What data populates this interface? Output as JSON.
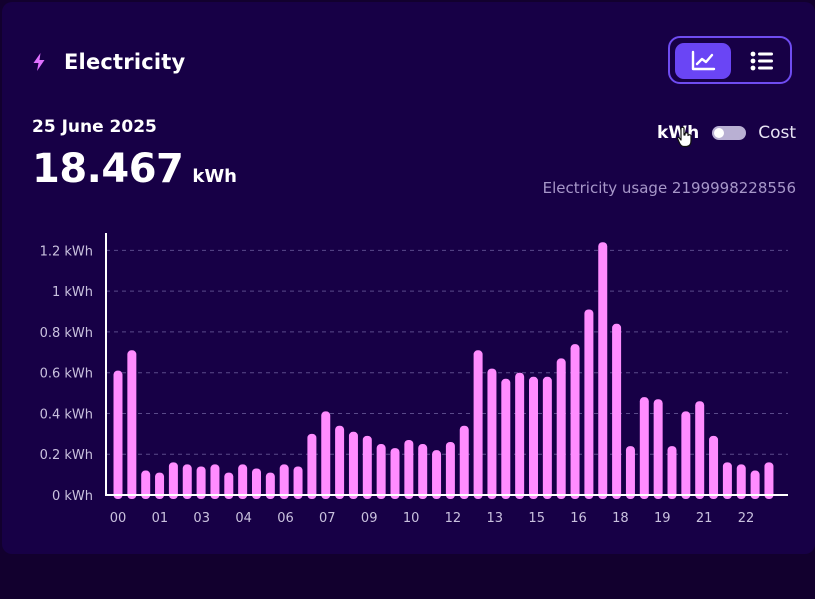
{
  "header": {
    "title": "Electricity",
    "icon": "lightning-bolt-icon",
    "icon_color": "#e070ff"
  },
  "view_toggle": {
    "chart_icon": "line-chart-icon",
    "list_icon": "list-icon",
    "selected": "chart",
    "accent": "#6a45f5"
  },
  "reading": {
    "date": "25 June 2025",
    "value": "18.467",
    "unit": "kWh"
  },
  "unit_switch": {
    "left_label": "kWh",
    "right_label": "Cost",
    "selected": "kWh"
  },
  "meter_label": "Electricity usage 2199998228556",
  "chart_data": {
    "type": "bar",
    "bar_color": "#ff8cff",
    "grid": true,
    "ylim": [
      0,
      1.3
    ],
    "yticks": [
      0,
      0.2,
      0.4,
      0.6,
      0.8,
      1,
      1.2
    ],
    "ytick_labels": [
      "0 kWh",
      "0.2 kWh",
      "0.4 kWh",
      "0.6 kWh",
      "0.8 kWh",
      "1 kWh",
      "1.2 kWh"
    ],
    "xtick_labels": [
      "00",
      "01",
      "03",
      "04",
      "06",
      "07",
      "09",
      "10",
      "12",
      "13",
      "15",
      "16",
      "18",
      "19",
      "21",
      "22"
    ],
    "values": [
      0.61,
      0.71,
      0.12,
      0.11,
      0.16,
      0.15,
      0.14,
      0.15,
      0.11,
      0.15,
      0.13,
      0.11,
      0.15,
      0.14,
      0.3,
      0.41,
      0.34,
      0.31,
      0.29,
      0.25,
      0.23,
      0.27,
      0.25,
      0.22,
      0.26,
      0.34,
      0.71,
      0.62,
      0.57,
      0.6,
      0.58,
      0.58,
      0.67,
      0.74,
      0.91,
      1.24,
      0.84,
      0.24,
      0.48,
      0.47,
      0.24,
      0.41,
      0.46,
      0.29,
      0.16,
      0.15,
      0.12,
      0.16
    ]
  }
}
